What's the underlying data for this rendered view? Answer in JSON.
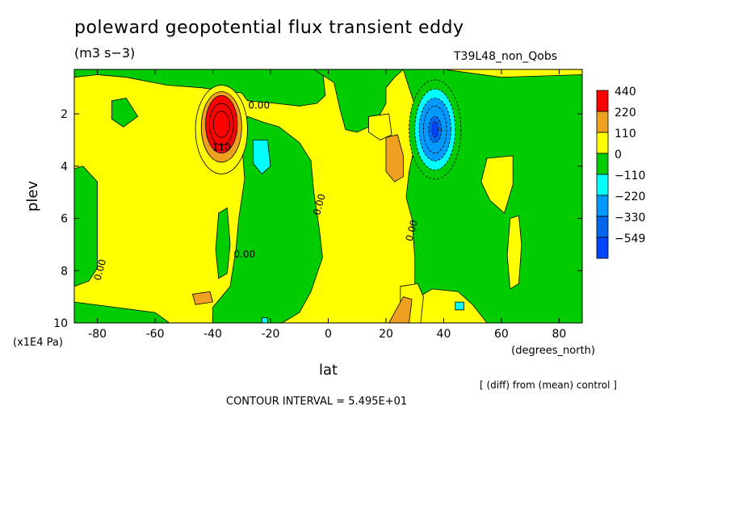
{
  "title": "poleward geopotential flux transient eddy",
  "units": "(m3 s−3)",
  "run_label": "T39L48_non_Qobs",
  "note": "[ (diff) from (mean) control ]",
  "contour_interval": "CONTOUR INTERVAL = 5.495E+01",
  "colors": {
    "red": "#ff0000",
    "orange": "#f0a020",
    "yellow": "#ffff00",
    "green": "#00cc00",
    "cyan": "#00ffff",
    "sky": "#0099ff",
    "blue": "#0066ee",
    "deep_blue": "#0044ff"
  },
  "chart_data": {
    "type": "heatmap",
    "xlabel": "lat",
    "xunit": "(degrees_north)",
    "ylabel": "plev",
    "yunit": "(x1E4 Pa)",
    "xlim": [
      -88,
      88
    ],
    "ylim": [
      10,
      0.3
    ],
    "x_ticks": [
      -80,
      -60,
      -40,
      -20,
      0,
      20,
      40,
      60,
      80
    ],
    "y_ticks": [
      2,
      4,
      6,
      8,
      10
    ],
    "colorbar": {
      "labels": [
        "440",
        "220",
        "110",
        "0",
        "−110",
        "−220",
        "−330",
        "−549"
      ],
      "colors": [
        "#ff0000",
        "#f0a020",
        "#ffff00",
        "#00cc00",
        "#00ffff",
        "#0099ff",
        "#0066ee",
        "#0044ff"
      ]
    },
    "contour_labels": [
      {
        "text": "0.00",
        "lat": -24,
        "plev": 1.8
      },
      {
        "text": "110",
        "lat": -37,
        "plev": 3.4
      },
      {
        "text": "0.00",
        "lat": -29,
        "plev": 7.5
      },
      {
        "text": "0.00",
        "lat": -2,
        "plev": 5.5
      },
      {
        "text": "0.00",
        "lat": 30,
        "plev": 6.5
      },
      {
        "text": "0.00",
        "lat": -78,
        "plev": 8.0
      }
    ],
    "features": [
      {
        "name": "positive maximum",
        "lat": -37,
        "plev": 2.4,
        "value": 440
      },
      {
        "name": "negative minimum",
        "lat": 37,
        "plev": 2.6,
        "value": -549
      },
      {
        "name": "negative region",
        "lat": -24,
        "plev": 3.6,
        "value": -110
      },
      {
        "name": "positive region",
        "lat": 23,
        "plev": 3.6,
        "value": 110
      }
    ]
  }
}
